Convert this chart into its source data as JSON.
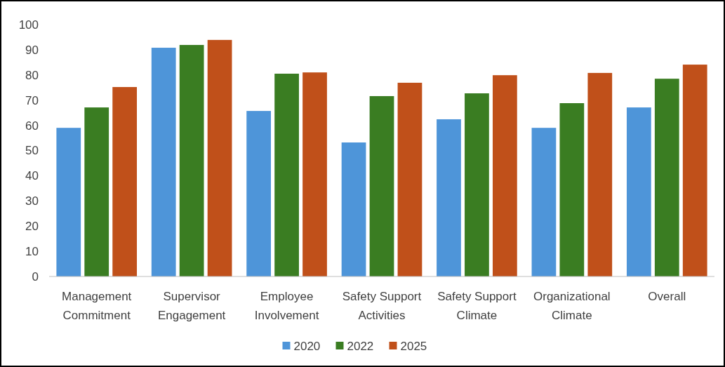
{
  "chart_data": {
    "type": "bar",
    "categories": [
      "Management Commitment",
      "Supervisor Engagement",
      "Employee Involvement",
      "Safety Support Activities",
      "Safety Support Climate",
      "Organizational Climate",
      "Overall"
    ],
    "series": [
      {
        "name": "2020",
        "color": "#4e95d9",
        "values": [
          59,
          90.8,
          65.7,
          53.2,
          62.4,
          59,
          67.1
        ]
      },
      {
        "name": "2022",
        "color": "#3a7d22",
        "values": [
          67.1,
          91.9,
          80.5,
          71.6,
          72.7,
          68.8,
          78.5
        ]
      },
      {
        "name": "2025",
        "color": "#c0501a",
        "values": [
          75.2,
          93.9,
          81,
          76.9,
          79.9,
          80.8,
          84.1
        ]
      }
    ],
    "ylim": [
      0,
      100
    ],
    "yticks": [
      0,
      10,
      20,
      30,
      40,
      50,
      60,
      70,
      80,
      90,
      100
    ],
    "grid": false,
    "legend": "bottom"
  }
}
